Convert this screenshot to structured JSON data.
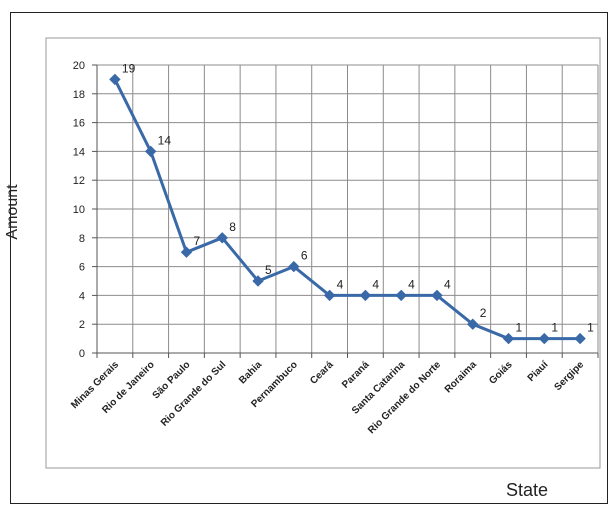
{
  "chart_data": {
    "type": "line",
    "title": "",
    "xlabel": "State",
    "ylabel": "Amount",
    "categories": [
      "Minas Gerais",
      "Rio de Janeiro",
      "São Paulo",
      "Rio Grande do Sul",
      "Bahia",
      "Pernambuco",
      "Ceará",
      "Paraná",
      "Santa Catarina",
      "Rio Grande do Norte",
      "Roraima",
      "Goiás",
      "Piauí",
      "Sergipe"
    ],
    "values": [
      19,
      14,
      7,
      8,
      5,
      6,
      4,
      4,
      4,
      4,
      2,
      1,
      1,
      1
    ],
    "ylim": [
      0,
      20
    ],
    "yticks": [
      0,
      2,
      4,
      6,
      8,
      10,
      12,
      14,
      16,
      18,
      20
    ],
    "grid": true,
    "legend": "none",
    "line_color": "#3A69A8",
    "grid_color": "#8c8c8c"
  }
}
